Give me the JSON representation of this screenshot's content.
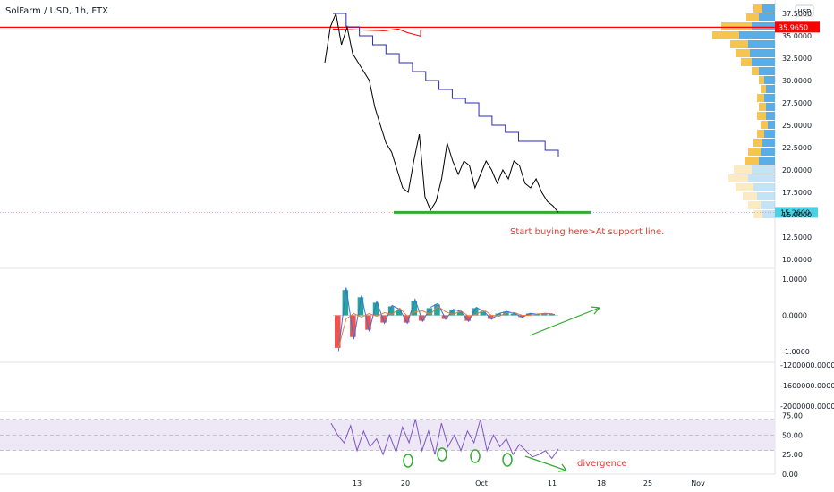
{
  "header": {
    "title": "SolFarm / USD, 1h, FTX"
  },
  "currency_button": "USD",
  "price_axis": {
    "ticks": [
      "37.5000",
      "35.0000",
      "32.5000",
      "30.0000",
      "27.5000",
      "25.0000",
      "22.5000",
      "20.0000",
      "17.5000",
      "15.0000",
      "12.5000",
      "10.0000"
    ],
    "current_price_label": "15.2600",
    "resistance_label": "35.9650"
  },
  "macd_axis": {
    "ticks": [
      "1.0000",
      "0.0000",
      "-1.0000"
    ]
  },
  "volume_axis": {
    "ticks": [
      "-1200000.0000",
      "-1600000.0000",
      "-2000000.0000"
    ]
  },
  "rsi_axis": {
    "ticks": [
      "75.00",
      "50.00",
      "25.00",
      "0.00"
    ]
  },
  "time_axis": {
    "labels": [
      "13",
      "20",
      "Oct",
      "11",
      "18",
      "25",
      "Nov"
    ]
  },
  "annotations": {
    "support_note": "Start buying here>At support line.",
    "divergence_note": "divergence"
  },
  "colors": {
    "price_line": "#000000",
    "resistance": "#ff0000",
    "support": "#33aa33",
    "upper_band": "#2b2bbb",
    "current_price_bg": "#4dd0e1",
    "volume_profile_up": "#5aaee8",
    "volume_profile_down": "#f5c451",
    "macd_line": "#3b6fd6",
    "signal_line": "#e87c3e",
    "hist_up": "#26a69a",
    "hist_down": "#ef5350",
    "rsi_line": "#7e57c2",
    "rsi_band": "#ede7f6",
    "annotation": "#e53935"
  },
  "chart_data": [
    {
      "type": "line",
      "title": "SolFarm / USD, 1h, FTX",
      "ylim": [
        9.0,
        39.0
      ],
      "x_labels": [
        "13",
        "20",
        "Oct",
        "11",
        "18",
        "25",
        "Nov"
      ],
      "series": [
        {
          "values": [
            32,
            36,
            37.5,
            34,
            36,
            33,
            32,
            31,
            30,
            27,
            25,
            23,
            22,
            20,
            18,
            17.5,
            21,
            24,
            17,
            15.5,
            16.5,
            19,
            23,
            21,
            19.5,
            21,
            20.5,
            18,
            19.5,
            21,
            20,
            18.5,
            20,
            19,
            21,
            20.5,
            18.5,
            18,
            19,
            17.5,
            16.5,
            16,
            15.26
          ]
        }
      ],
      "upper_band": [
        37.5,
        36,
        35,
        34,
        33,
        32,
        31,
        30,
        29,
        28,
        27.5,
        26,
        25,
        24.2,
        23.2,
        23.2,
        22.2,
        21.5
      ],
      "resistance_level": 35.965,
      "support_level": 15.26,
      "current_price": 15.26
    },
    {
      "type": "bar",
      "title": "",
      "ylim": [
        -1.3,
        1.3
      ],
      "values": [
        -0.9,
        0.7,
        -0.6,
        0.5,
        -0.4,
        0.35,
        -0.2,
        0.25,
        0.15,
        -0.2,
        0.4,
        -0.15,
        0.2,
        0.3,
        -0.1,
        0.15,
        0.1,
        -0.15,
        0.2,
        0.1,
        -0.1,
        0.05,
        0.1,
        0.05,
        -0.05,
        0.05,
        0.03,
        0.05,
        0.04
      ]
    },
    {
      "type": "line",
      "title": "",
      "ylim": [
        0,
        80
      ],
      "series": [
        {
          "values": [
            65,
            50,
            40,
            62,
            30,
            55,
            35,
            45,
            25,
            50,
            28,
            60,
            40,
            70,
            30,
            55,
            25,
            65,
            35,
            50,
            30,
            55,
            40,
            70,
            30,
            50,
            35,
            45,
            25,
            38,
            30,
            22,
            25,
            30,
            20,
            32
          ]
        }
      ],
      "band": [
        30,
        70
      ]
    }
  ]
}
